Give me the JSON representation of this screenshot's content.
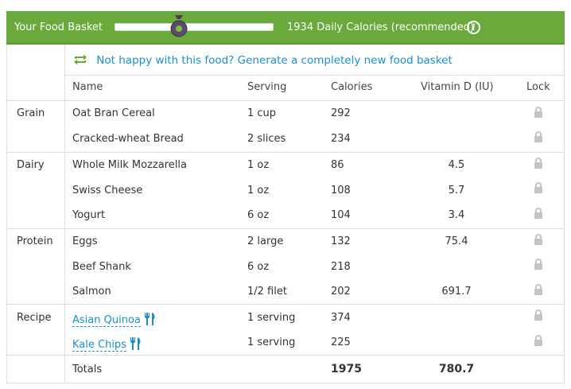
{
  "header": {
    "title": "Your Food Basket",
    "calories_text": "1934 Daily Calories (recommended)",
    "info_icon": "info-icon"
  },
  "regenerate": {
    "label": "Not happy with this food? Generate a completely new food basket",
    "icon": "refresh-icon"
  },
  "columns": {
    "name": "Name",
    "serving": "Serving",
    "calories": "Calories",
    "vitamin": "Vitamin D (IU)",
    "lock": "Lock"
  },
  "categories": {
    "grain": "Grain",
    "dairy": "Dairy",
    "protein": "Protein",
    "recipe": "Recipe"
  },
  "rows": [
    {
      "name": "Oat Bran Cereal",
      "serving": "1 cup",
      "calories": "292",
      "vitamin": ""
    },
    {
      "name": "Cracked-wheat Bread",
      "serving": "2 slices",
      "calories": "234",
      "vitamin": ""
    },
    {
      "name": "Whole Milk Mozzarella",
      "serving": "1 oz",
      "calories": "86",
      "vitamin": "4.5"
    },
    {
      "name": "Swiss Cheese",
      "serving": "1 oz",
      "calories": "108",
      "vitamin": "5.7"
    },
    {
      "name": "Yogurt",
      "serving": "6 oz",
      "calories": "104",
      "vitamin": "3.4"
    },
    {
      "name": "Eggs",
      "serving": "2 large",
      "calories": "132",
      "vitamin": "75.4"
    },
    {
      "name": "Beef Shank",
      "serving": "6 oz",
      "calories": "218",
      "vitamin": ""
    },
    {
      "name": "Salmon",
      "serving": "1/2 filet",
      "calories": "202",
      "vitamin": "691.7"
    },
    {
      "name": "Asian Quinoa",
      "serving": "1 serving",
      "calories": "374",
      "vitamin": ""
    },
    {
      "name": "Kale Chips",
      "serving": "1 serving",
      "calories": "225",
      "vitamin": ""
    }
  ],
  "totals": {
    "label": "Totals",
    "calories": "1975",
    "vitamin": "780.7"
  },
  "colors": {
    "header_green": "#6aaa3c",
    "link_blue": "#1a8fd0",
    "handle_purple": "#5b4a6e"
  }
}
